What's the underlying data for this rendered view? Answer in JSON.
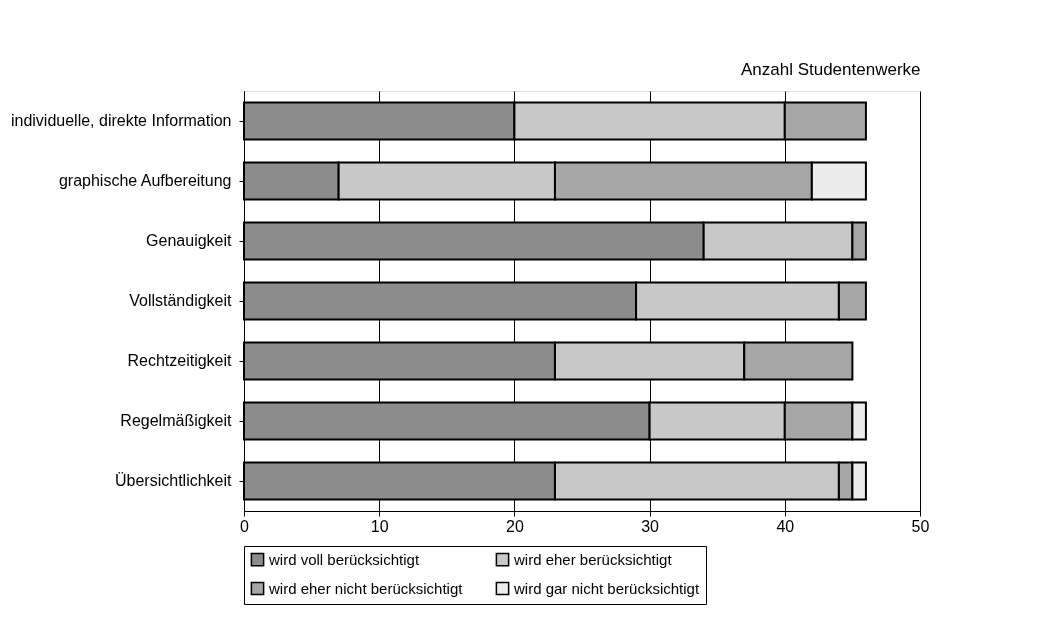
{
  "chart_data": {
    "type": "bar",
    "orientation": "horizontal",
    "stacked": true,
    "xlabel": "Anzahl Studentenwerke",
    "categories": [
      "individuelle, direkte Information",
      "graphische Aufbereitung",
      "Genauigkeit",
      "Vollständigkeit",
      "Rechtzeitigkeit",
      "Regelmäßigkeit",
      "Übersichtlichkeit"
    ],
    "series": [
      {
        "name": "wird voll berücksichtigt",
        "color": "#8c8c8c",
        "values": [
          20,
          7,
          34,
          29,
          23,
          30,
          23
        ]
      },
      {
        "name": "wird eher berücksichtigt",
        "color": "#c8c8c8",
        "values": [
          20,
          16,
          11,
          15,
          14,
          10,
          21
        ]
      },
      {
        "name": "wird eher nicht berücksichtigt",
        "color": "#a6a6a6",
        "values": [
          6,
          19,
          1,
          2,
          8,
          5,
          1
        ]
      },
      {
        "name": "wird gar nicht berücksichtigt",
        "color": "#ececec",
        "values": [
          0,
          4,
          0,
          0,
          0,
          1,
          1
        ]
      }
    ],
    "xlim": [
      0,
      50
    ],
    "xticks": [
      0,
      10,
      20,
      30,
      40,
      50
    ],
    "grid": "x",
    "legend": "bottom"
  }
}
